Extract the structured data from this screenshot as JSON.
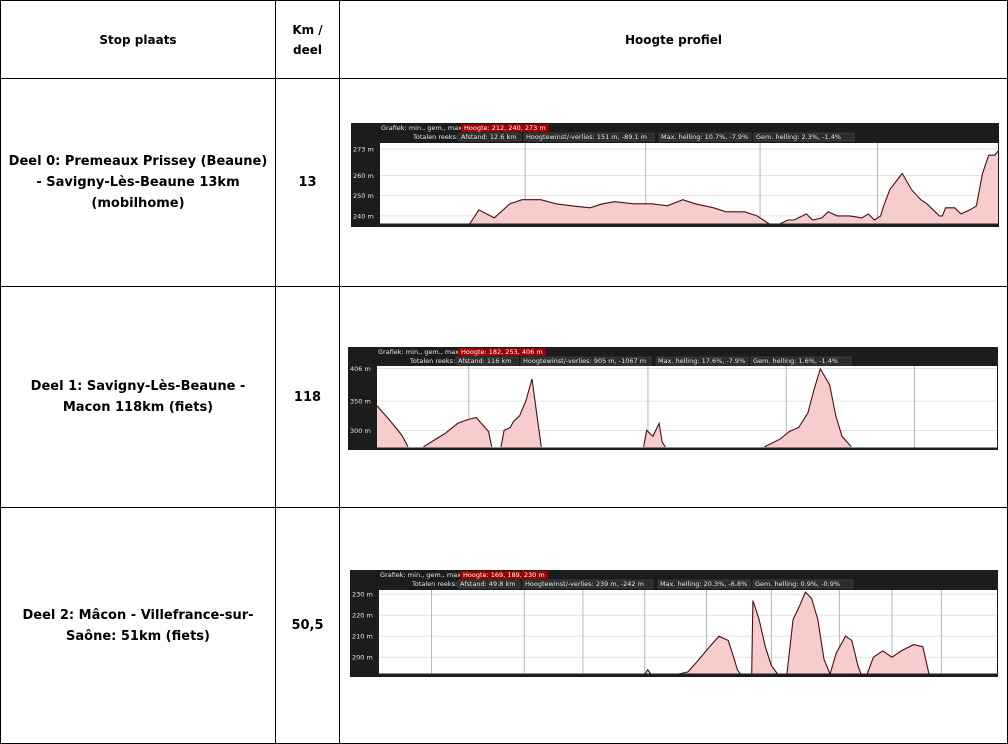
{
  "headers": {
    "stop": "Stop plaats",
    "km": "Km / deel",
    "profile": "Hoogte profiel"
  },
  "rows": [
    {
      "name": "Deel 0: Premeaux Prissey (Beaune) - Savigny-Lès-Beaune 13km (mobilhome)",
      "km": "13",
      "profile": {
        "legend_label": "Grafiek: min., gem., max.",
        "legend_value": "Hoogte: 212, 240, 273 m",
        "totals_label": "Totalen reeks:",
        "stats": [
          "Afstand: 12.6 km",
          "Hoogtewinst/-verlies: 151 m, -89.1 m",
          "Max. helling: 10.7%, -7.9%",
          "Gem. helling: 2.3%, -1.4%"
        ],
        "ylabels": [
          "273 m",
          "260 m",
          "250 m",
          "240 m"
        ],
        "yvals": [
          273,
          260,
          250,
          240
        ],
        "ymin": 236,
        "ymax": 276,
        "vlines": [
          0.235,
          0.43,
          0.615,
          0.805
        ],
        "segments": [
          [
            [
              0.145,
              236
            ],
            [
              0.16,
              243
            ],
            [
              0.185,
              239
            ],
            [
              0.21,
              246
            ],
            [
              0.23,
              248
            ],
            [
              0.26,
              248
            ],
            [
              0.285,
              246
            ],
            [
              0.31,
              245
            ],
            [
              0.34,
              244
            ],
            [
              0.36,
              246
            ],
            [
              0.38,
              247
            ],
            [
              0.41,
              246
            ],
            [
              0.44,
              246
            ],
            [
              0.465,
              245
            ],
            [
              0.49,
              248
            ],
            [
              0.51,
              246
            ],
            [
              0.54,
              244
            ],
            [
              0.56,
              242
            ],
            [
              0.59,
              242
            ],
            [
              0.61,
              240
            ],
            [
              0.625,
              237
            ],
            [
              0.63,
              236
            ]
          ],
          [
            [
              0.647,
              236
            ],
            [
              0.66,
              238
            ],
            [
              0.67,
              238
            ],
            [
              0.69,
              241
            ],
            [
              0.7,
              238
            ],
            [
              0.715,
              239
            ],
            [
              0.725,
              242
            ],
            [
              0.74,
              240
            ],
            [
              0.76,
              240
            ],
            [
              0.78,
              239
            ],
            [
              0.79,
              241
            ],
            [
              0.8,
              238
            ],
            [
              0.81,
              240
            ],
            [
              0.815,
              245
            ],
            [
              0.825,
              253
            ],
            [
              0.835,
              257
            ],
            [
              0.845,
              261
            ],
            [
              0.86,
              253
            ],
            [
              0.875,
              248
            ],
            [
              0.885,
              246
            ],
            [
              0.895,
              243
            ],
            [
              0.905,
              240
            ],
            [
              0.91,
              240
            ],
            [
              0.915,
              244
            ],
            [
              0.93,
              244
            ],
            [
              0.94,
              241
            ],
            [
              0.955,
              243
            ],
            [
              0.965,
              245
            ],
            [
              0.975,
              261
            ],
            [
              0.985,
              270
            ],
            [
              0.995,
              270
            ],
            [
              1.0,
              272
            ]
          ]
        ]
      }
    },
    {
      "name": "Deel 1: Savigny-Lès-Beaune - Macon 118km (fiets)",
      "km": "118",
      "profile": {
        "legend_label": "Grafiek: min., gem., max.",
        "legend_value": "Hoogte: 182, 253, 406 m",
        "totals_label": "Totalen reeks:",
        "stats": [
          "Afstand: 116 km",
          "Hoogtewinst/-verlies: 905 m, -1067 m",
          "Max. helling: 17.6%, -7.9%",
          "Gem. helling: 1.6%, -1.4%"
        ],
        "ylabels": [
          "406 m",
          "350 m",
          "300 m"
        ],
        "yvals": [
          406,
          350,
          300
        ],
        "ymin": 270,
        "ymax": 410,
        "vlines": [
          0.148,
          0.437,
          0.66,
          0.867
        ],
        "segments": [
          [
            [
              0.0,
              342
            ],
            [
              0.02,
              318
            ],
            [
              0.04,
              292
            ],
            [
              0.05,
              272
            ]
          ],
          [
            [
              0.075,
              272
            ],
            [
              0.09,
              282
            ],
            [
              0.11,
              295
            ],
            [
              0.13,
              312
            ],
            [
              0.145,
              318
            ],
            [
              0.16,
              322
            ],
            [
              0.17,
              310
            ],
            [
              0.18,
              298
            ],
            [
              0.185,
              272
            ]
          ],
          [
            [
              0.2,
              272
            ],
            [
              0.205,
              300
            ],
            [
              0.215,
              305
            ],
            [
              0.22,
              315
            ],
            [
              0.23,
              325
            ],
            [
              0.24,
              350
            ],
            [
              0.25,
              388
            ],
            [
              0.26,
              310
            ],
            [
              0.265,
              272
            ]
          ],
          [
            [
              0.43,
              272
            ],
            [
              0.435,
              300
            ],
            [
              0.445,
              290
            ],
            [
              0.455,
              312
            ],
            [
              0.46,
              280
            ],
            [
              0.465,
              272
            ]
          ],
          [
            [
              0.625,
              272
            ],
            [
              0.65,
              285
            ],
            [
              0.665,
              298
            ],
            [
              0.68,
              305
            ],
            [
              0.695,
              330
            ],
            [
              0.705,
              370
            ],
            [
              0.715,
              405
            ],
            [
              0.73,
              378
            ],
            [
              0.74,
              325
            ],
            [
              0.75,
              290
            ],
            [
              0.76,
              278
            ],
            [
              0.765,
              272
            ]
          ]
        ]
      }
    },
    {
      "name": "Deel 2: Mâcon - Villefrance-sur-Saône: 51km (fiets)",
      "km": "50,5",
      "profile": {
        "legend_label": "Grafiek: min., gem., max.",
        "legend_value": "Hoogte: 169, 189, 230 m",
        "totals_label": "Totalen reeks:",
        "stats": [
          "Afstand: 49.8 km",
          "Hoogtewinst/-verlies: 239 m, -242 m",
          "Max. helling: 20.3%, -6.8%",
          "Gem. helling: 0.9%, -0.9%"
        ],
        "ylabels": [
          "230 m",
          "220 m",
          "210 m",
          "200 m"
        ],
        "yvals": [
          230,
          220,
          210,
          200
        ],
        "ymin": 192,
        "ymax": 232,
        "vlines": [
          0.085,
          0.235,
          0.33,
          0.43,
          0.53,
          0.635,
          0.745,
          0.83,
          0.91
        ],
        "segments": [
          [
            [
              0.43,
              192
            ],
            [
              0.435,
              194
            ],
            [
              0.44,
              192
            ]
          ],
          [
            [
              0.485,
              192
            ],
            [
              0.5,
              193
            ],
            [
              0.515,
              198
            ],
            [
              0.535,
              205
            ],
            [
              0.55,
              210
            ],
            [
              0.565,
              208
            ],
            [
              0.575,
              199
            ],
            [
              0.58,
              194
            ],
            [
              0.585,
              192
            ]
          ],
          [
            [
              0.603,
              192
            ],
            [
              0.605,
              227
            ],
            [
              0.615,
              218
            ],
            [
              0.625,
              205
            ],
            [
              0.635,
              196
            ],
            [
              0.645,
              192
            ]
          ],
          [
            [
              0.66,
              192
            ],
            [
              0.67,
              218
            ],
            [
              0.68,
              224
            ],
            [
              0.69,
              231
            ],
            [
              0.7,
              228
            ],
            [
              0.71,
              218
            ],
            [
              0.72,
              199
            ],
            [
              0.73,
              192
            ]
          ],
          [
            [
              0.73,
              192
            ],
            [
              0.74,
              202
            ],
            [
              0.755,
              210
            ],
            [
              0.765,
              208
            ],
            [
              0.775,
              196
            ],
            [
              0.78,
              192
            ]
          ],
          [
            [
              0.79,
              192
            ],
            [
              0.8,
              200
            ],
            [
              0.815,
              203
            ],
            [
              0.83,
              200
            ],
            [
              0.845,
              203
            ],
            [
              0.865,
              206
            ],
            [
              0.88,
              205
            ],
            [
              0.89,
              192
            ]
          ]
        ]
      }
    }
  ]
}
